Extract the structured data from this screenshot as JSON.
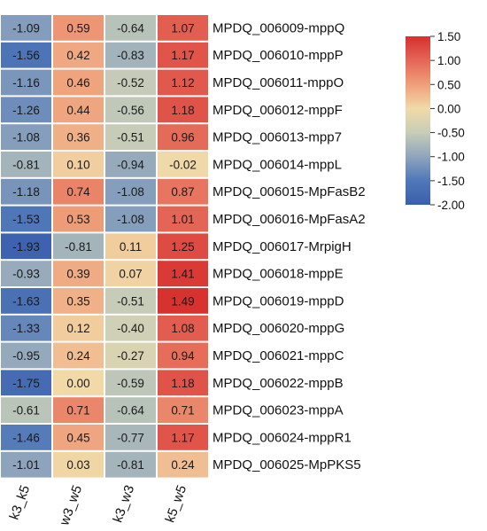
{
  "chart_data": {
    "type": "heatmap",
    "columns": [
      "k3_k5",
      "w3_w5",
      "k3_w3",
      "k5_w5"
    ],
    "rows": [
      "MPDQ_006009-mppQ",
      "MPDQ_006010-mppP",
      "MPDQ_006011-mppO",
      "MPDQ_006012-mppF",
      "MPDQ_006013-mpp7",
      "MPDQ_006014-mppL",
      "MPDQ_006015-MpFasB2",
      "MPDQ_006016-MpFasA2",
      "MPDQ_006017-MrpigH",
      "MPDQ_006018-mppE",
      "MPDQ_006019-mppD",
      "MPDQ_006020-mppG",
      "MPDQ_006021-mppC",
      "MPDQ_006022-mppB",
      "MPDQ_006023-mppA",
      "MPDQ_006024-mppR1",
      "MPDQ_006025-MpPKS5"
    ],
    "values": [
      [
        -1.09,
        0.59,
        -0.64,
        1.07
      ],
      [
        -1.56,
        0.42,
        -0.83,
        1.17
      ],
      [
        -1.16,
        0.46,
        -0.52,
        1.12
      ],
      [
        -1.26,
        0.44,
        -0.56,
        1.18
      ],
      [
        -1.08,
        0.36,
        -0.51,
        0.96
      ],
      [
        -0.81,
        0.1,
        -0.94,
        -0.02
      ],
      [
        -1.18,
        0.74,
        -1.08,
        0.87
      ],
      [
        -1.53,
        0.53,
        -1.08,
        1.01
      ],
      [
        -1.93,
        -0.81,
        0.11,
        1.25
      ],
      [
        -0.93,
        0.39,
        0.07,
        1.41
      ],
      [
        -1.63,
        0.35,
        -0.51,
        1.49
      ],
      [
        -1.33,
        0.12,
        -0.4,
        1.08
      ],
      [
        -0.95,
        0.24,
        -0.27,
        0.94
      ],
      [
        -1.75,
        0.0,
        -0.59,
        1.18
      ],
      [
        -0.61,
        0.71,
        -0.64,
        0.71
      ],
      [
        -1.46,
        0.45,
        -0.77,
        1.17
      ],
      [
        -1.01,
        0.03,
        -0.81,
        0.24
      ]
    ],
    "color_scale": {
      "min": -2.0,
      "max": 1.5,
      "stops": [
        {
          "value": -2.0,
          "color": "#3b5fad"
        },
        {
          "value": -1.5,
          "color": "#5077b8"
        },
        {
          "value": -1.0,
          "color": "#8fa5bd"
        },
        {
          "value": -0.5,
          "color": "#c7cdb8"
        },
        {
          "value": 0.0,
          "color": "#f1daa8"
        },
        {
          "value": 0.5,
          "color": "#ef9f7a"
        },
        {
          "value": 1.0,
          "color": "#e46656"
        },
        {
          "value": 1.5,
          "color": "#d7302f"
        }
      ],
      "ticks": [
        "1.50",
        "1.00",
        "0.50",
        "0.00",
        "-0.50",
        "-1.00",
        "-1.50",
        "-2.00"
      ]
    },
    "legend_placement": "right",
    "title": "",
    "xlabel": "",
    "ylabel": ""
  }
}
